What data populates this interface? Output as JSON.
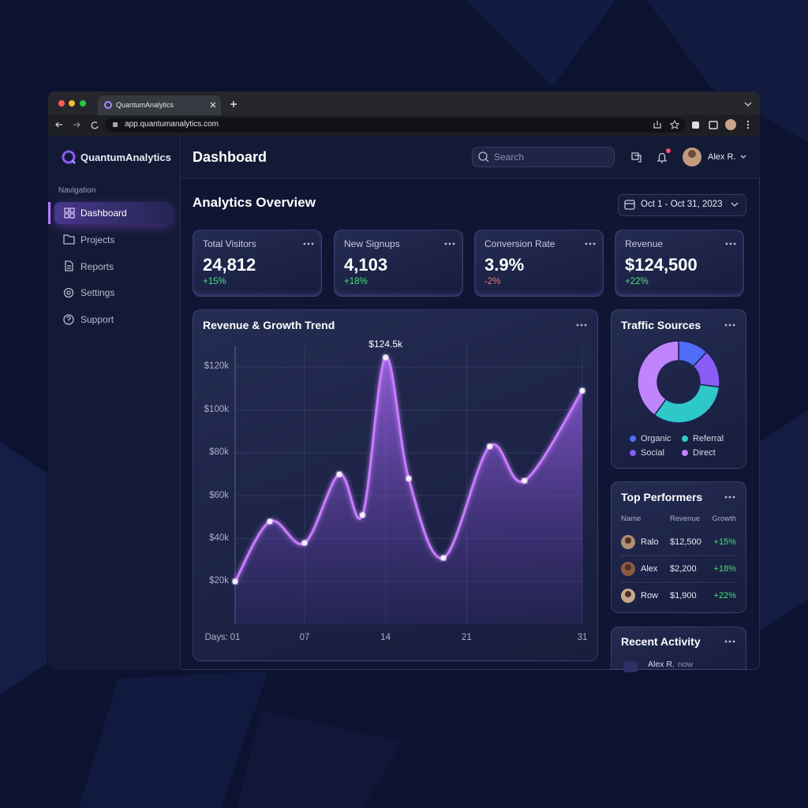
{
  "browser": {
    "tab_title": "QuantumAnalytics",
    "url": "app.quantumanalytics.com"
  },
  "sidebar": {
    "brand": "QuantumAnalytics",
    "nav_heading": "Navigation",
    "nav": [
      "Dashboard",
      "Projects",
      "Reports",
      "Settings",
      "Support"
    ],
    "active": 0
  },
  "header": {
    "title": "Dashboard",
    "search_placeholder": "Search",
    "user": "Alex R."
  },
  "overview": {
    "title": "Analytics Overview",
    "date_range": "Oct 1 - Oct 31, 2023"
  },
  "kpis": [
    {
      "label": "Total Visitors",
      "value": "24,812",
      "change": "+15%"
    },
    {
      "label": "New Signups",
      "value": "4,103",
      "change": "+18%"
    },
    {
      "label": "Conversion Rate",
      "value": "3.9%",
      "change": "-2%"
    },
    {
      "label": "Revenue",
      "value": "$124,500",
      "change": "+22%"
    }
  ],
  "chart_data": [
    {
      "type": "line",
      "title": "Revenue & Growth Trend",
      "x_label": "Days:",
      "x": [
        1,
        4,
        7,
        10,
        12,
        14,
        16,
        19,
        23,
        26,
        31
      ],
      "values": [
        20000,
        48000,
        38000,
        70000,
        51000,
        124500,
        68000,
        31000,
        83000,
        67000,
        109000
      ],
      "value_labels": [
        null,
        null,
        null,
        null,
        null,
        "$124.5k",
        null,
        null,
        null,
        null,
        null
      ],
      "color": "#c77dff",
      "xlim": [
        1,
        31
      ],
      "xticks": [
        {
          "value": 1,
          "label": "01"
        },
        {
          "value": 7,
          "label": "07"
        },
        14,
        21,
        31
      ],
      "ylim": [
        0,
        130000
      ],
      "yticks": [
        {
          "value": 20000,
          "label": "$20k"
        },
        {
          "value": 40000,
          "label": "$40k"
        },
        {
          "value": 60000,
          "label": "$60k"
        },
        {
          "value": 80000,
          "label": "$80k"
        },
        {
          "value": 100000,
          "label": "$100k"
        },
        {
          "value": 120000,
          "label": "$120k"
        }
      ],
      "grid": true
    },
    {
      "type": "pie",
      "title": "Traffic Sources",
      "donut": true,
      "categories": [
        "Organic",
        "Social",
        "Referral",
        "Direct"
      ],
      "values": [
        12,
        15,
        33,
        40
      ],
      "colors": [
        "#4f6ef7",
        "#8b5cf6",
        "#2ec8c8",
        "#c084fc"
      ]
    }
  ],
  "top_performers": {
    "title": "Top Performers",
    "columns": [
      "Name",
      "Revenue",
      "Growth"
    ],
    "rows": [
      [
        "Ralo",
        "$12,500",
        "+15%"
      ],
      [
        "Alex",
        "$2,200",
        "+18%"
      ],
      [
        "Row",
        "$1,900",
        "+22%"
      ]
    ]
  },
  "recent_activity": {
    "title": "Recent Activity",
    "items": [
      {
        "user": "Alex R.",
        "time": "now"
      }
    ]
  }
}
